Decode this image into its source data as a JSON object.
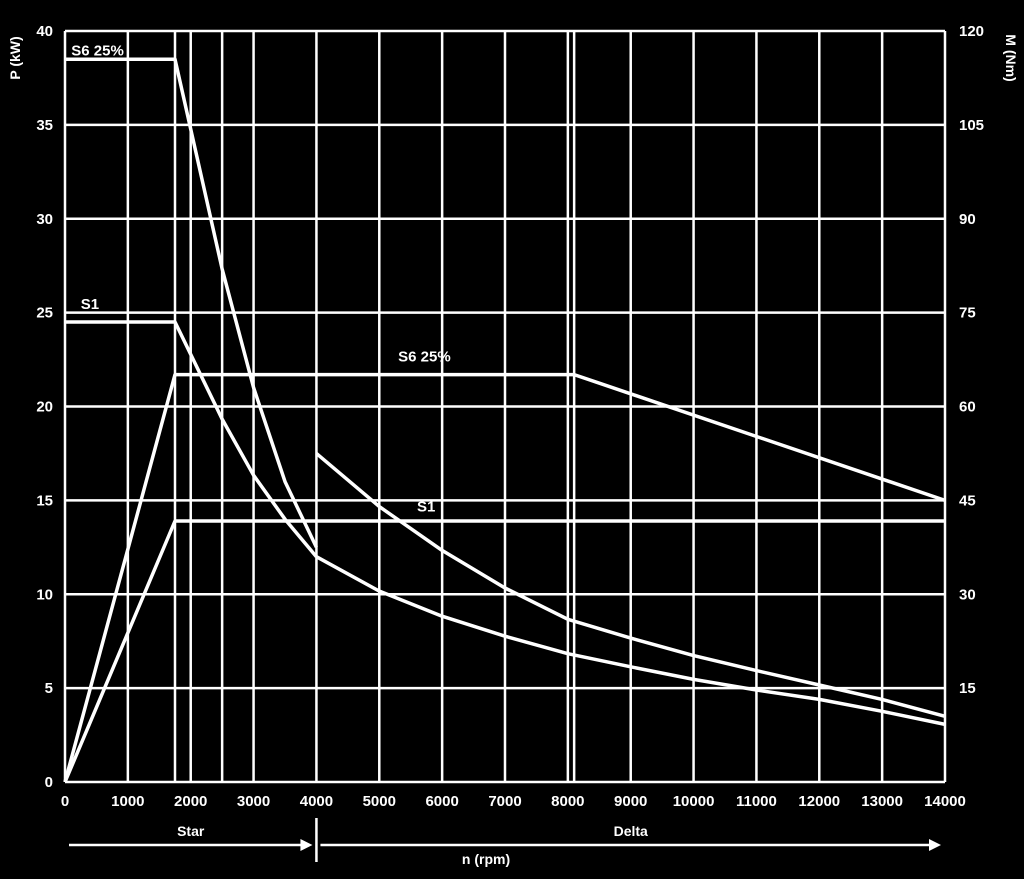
{
  "chart_data": {
    "type": "line",
    "xlabel": "n (rpm)",
    "ylabel_left": "P (kW)",
    "ylabel_right": "M (Nm)",
    "xlim": [
      0,
      14000
    ],
    "ylim_left": [
      0,
      40
    ],
    "ylim_right": [
      0,
      120
    ],
    "grid": true,
    "x_ticks": [
      "0",
      "1000",
      "2000",
      "3000",
      "4000",
      "5000",
      "6000",
      "7000",
      "8000",
      "9000",
      "10000",
      "11000",
      "12000",
      "13000",
      "14000"
    ],
    "x_tick_values": [
      0,
      1000,
      2000,
      3000,
      4000,
      5000,
      6000,
      7000,
      8000,
      9000,
      10000,
      11000,
      12000,
      13000,
      14000
    ],
    "y_left_ticks": [
      "0",
      "5",
      "10",
      "15",
      "20",
      "25",
      "30",
      "35",
      "40"
    ],
    "y_left_tick_values": [
      0,
      5,
      10,
      15,
      20,
      25,
      30,
      35,
      40
    ],
    "y_right_ticks": [
      "15",
      "30",
      "45",
      "60",
      "75",
      "90",
      "105",
      "120"
    ],
    "y_right_tick_values": [
      15,
      30,
      45,
      60,
      75,
      90,
      105,
      120
    ],
    "extra_vertical_gridlines": [
      1750,
      2500,
      8100
    ],
    "connection_modes": [
      {
        "label": "Star",
        "from": 0,
        "to": 4000
      },
      {
        "label": "Delta",
        "from": 4000,
        "to": 14000
      }
    ],
    "series": [
      {
        "name": "S6 25%",
        "axis": "right",
        "x": [
          0,
          1750,
          2500,
          3000,
          3500,
          4000
        ],
        "y": [
          115.5,
          115.5,
          82,
          63,
          48,
          37.5
        ]
      },
      {
        "name": "S1",
        "axis": "right",
        "x": [
          0,
          1750,
          2500,
          3000,
          3500,
          4000
        ],
        "y": [
          73.5,
          73.5,
          58,
          49,
          42,
          36
        ]
      },
      {
        "name": "S6 25%",
        "axis": "left",
        "x": [
          0,
          1750,
          2500,
          4000,
          8100,
          14000
        ],
        "y": [
          0,
          21.7,
          21.7,
          21.7,
          21.7,
          15
        ]
      },
      {
        "name": "S1",
        "axis": "left",
        "x": [
          0,
          1750,
          4000,
          14000
        ],
        "y": [
          0,
          13.9,
          13.9,
          13.9
        ]
      },
      {
        "axis": "right",
        "x": [
          4000,
          5000,
          6000,
          7000,
          8000,
          9000,
          10000,
          11000,
          12000,
          13000,
          14000
        ],
        "y": [
          52.5,
          44,
          37,
          31,
          26,
          23,
          20.2,
          17.8,
          15.5,
          13.2,
          10.5
        ]
      },
      {
        "axis": "right",
        "x": [
          4000,
          5000,
          6000,
          7000,
          8000,
          9000,
          10000,
          11000,
          12000,
          13000,
          14000
        ],
        "y": [
          36,
          30.5,
          26.5,
          23.3,
          20.5,
          18.4,
          16.4,
          14.7,
          13.2,
          11.3,
          9.2
        ]
      }
    ],
    "annotations": [
      {
        "text": "S6 25%",
        "x": 100,
        "y": 38.7
      },
      {
        "text": "S1",
        "x": 250,
        "y": 25.2
      },
      {
        "text": "S6 25%",
        "x": 5300,
        "y": 22.4
      },
      {
        "text": "S1",
        "x": 5600,
        "y": 14.4
      }
    ]
  }
}
